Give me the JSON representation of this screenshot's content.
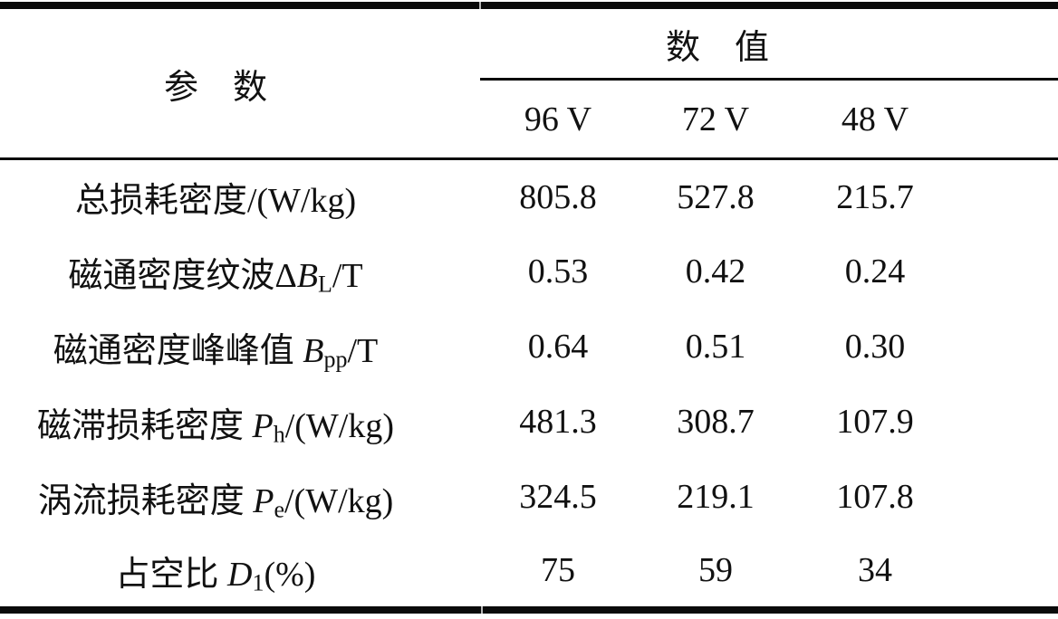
{
  "page": {
    "background": "#ffffff",
    "text_color": "#111111",
    "rule_color": "#0a0a0a"
  },
  "table": {
    "header": {
      "param": "参　数",
      "value_group": "数　值",
      "voltages": [
        "96 V",
        "72 V",
        "48 V"
      ]
    },
    "rows": [
      {
        "label": {
          "prefix": "总损耗密度/(W/kg)",
          "symbol": "",
          "sub": "",
          "suffix": ""
        },
        "values": [
          "805.8",
          "527.8",
          "215.7"
        ]
      },
      {
        "label": {
          "prefix": "磁通密度纹波Δ",
          "symbol": "B",
          "sub": "L",
          "suffix": "/T"
        },
        "values": [
          "0.53",
          "0.42",
          "0.24"
        ]
      },
      {
        "label": {
          "prefix": "磁通密度峰峰值 ",
          "symbol": "B",
          "sub": "pp",
          "suffix": "/T"
        },
        "values": [
          "0.64",
          "0.51",
          "0.30"
        ]
      },
      {
        "label": {
          "prefix": "磁滞损耗密度 ",
          "symbol": "P",
          "sub": "h",
          "suffix": "/(W/kg)"
        },
        "values": [
          "481.3",
          "308.7",
          "107.9"
        ]
      },
      {
        "label": {
          "prefix": "涡流损耗密度 ",
          "symbol": "P",
          "sub": "e",
          "suffix": "/(W/kg)"
        },
        "values": [
          "324.5",
          "219.1",
          "107.8"
        ]
      },
      {
        "label": {
          "prefix": "占空比 ",
          "symbol": "D",
          "sub": "1",
          "suffix": "(%)"
        },
        "values": [
          "75",
          "59",
          "34"
        ]
      }
    ]
  }
}
